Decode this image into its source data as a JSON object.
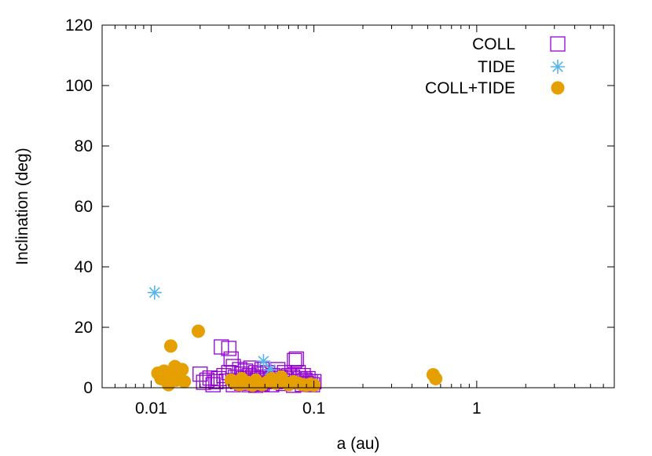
{
  "chart_data": {
    "type": "scatter",
    "title": "",
    "xlabel": "a (au)",
    "ylabel": "Inclination (deg)",
    "xscale": "log",
    "xlim": [
      0.005,
      7.0
    ],
    "ylim": [
      0,
      120
    ],
    "xticks": [
      {
        "value": 0.01,
        "label": "0.01"
      },
      {
        "value": 0.1,
        "label": "0.1"
      },
      {
        "value": 1,
        "label": "1"
      }
    ],
    "yticks": [
      {
        "value": 0,
        "label": "0"
      },
      {
        "value": 20,
        "label": "20"
      },
      {
        "value": 40,
        "label": "40"
      },
      {
        "value": 60,
        "label": "60"
      },
      {
        "value": 80,
        "label": "80"
      },
      {
        "value": 100,
        "label": "100"
      },
      {
        "value": 120,
        "label": "120"
      }
    ],
    "grid": false,
    "legend_position": "top-right",
    "series": [
      {
        "name": "COLL",
        "color": "#9400d3",
        "marker": "open-square",
        "points": [
          [
            0.02,
            4.5
          ],
          [
            0.021,
            1.8
          ],
          [
            0.022,
            2.5
          ],
          [
            0.023,
            3.2
          ],
          [
            0.024,
            1.0
          ],
          [
            0.025,
            2.0
          ],
          [
            0.026,
            3.0
          ],
          [
            0.027,
            13.5
          ],
          [
            0.028,
            4.0
          ],
          [
            0.029,
            2.2
          ],
          [
            0.03,
            13.0
          ],
          [
            0.03,
            5.0
          ],
          [
            0.031,
            9.5
          ],
          [
            0.032,
            7.0
          ],
          [
            0.033,
            3.5
          ],
          [
            0.034,
            2.0
          ],
          [
            0.035,
            6.0
          ],
          [
            0.036,
            4.5
          ],
          [
            0.037,
            3.0
          ],
          [
            0.038,
            5.5
          ],
          [
            0.039,
            2.5
          ],
          [
            0.04,
            4.0
          ],
          [
            0.041,
            6.5
          ],
          [
            0.042,
            3.5
          ],
          [
            0.043,
            2.0
          ],
          [
            0.044,
            5.0
          ],
          [
            0.045,
            3.0
          ],
          [
            0.046,
            4.5
          ],
          [
            0.047,
            1.5
          ],
          [
            0.048,
            6.0
          ],
          [
            0.049,
            3.5
          ],
          [
            0.05,
            2.5
          ],
          [
            0.052,
            5.0
          ],
          [
            0.054,
            3.0
          ],
          [
            0.056,
            4.0
          ],
          [
            0.058,
            2.0
          ],
          [
            0.06,
            6.0
          ],
          [
            0.062,
            3.5
          ],
          [
            0.064,
            2.5
          ],
          [
            0.066,
            5.0
          ],
          [
            0.068,
            3.0
          ],
          [
            0.07,
            4.0
          ],
          [
            0.072,
            2.0
          ],
          [
            0.074,
            3.5
          ],
          [
            0.076,
            9.0
          ],
          [
            0.078,
            9.5
          ],
          [
            0.08,
            5.0
          ],
          [
            0.082,
            3.0
          ],
          [
            0.084,
            2.0
          ],
          [
            0.086,
            4.0
          ],
          [
            0.088,
            2.5
          ],
          [
            0.09,
            1.5
          ],
          [
            0.092,
            3.0
          ],
          [
            0.095,
            2.0
          ],
          [
            0.098,
            1.0
          ],
          [
            0.1,
            2.0
          ],
          [
            0.032,
            1.0
          ],
          [
            0.036,
            1.5
          ],
          [
            0.04,
            1.0
          ],
          [
            0.044,
            0.8
          ],
          [
            0.048,
            1.2
          ],
          [
            0.055,
            1.0
          ],
          [
            0.065,
            1.4
          ],
          [
            0.075,
            0.8
          ],
          [
            0.085,
            1.1
          ]
        ]
      },
      {
        "name": "TIDE",
        "color": "#56b4e9",
        "marker": "asterisk",
        "points": [
          [
            0.0105,
            31.5
          ],
          [
            0.049,
            8.8
          ],
          [
            0.054,
            6.0
          ]
        ]
      },
      {
        "name": "COLL+TIDE",
        "color": "#e69f00",
        "marker": "filled-circle",
        "points": [
          [
            0.011,
            4.8
          ],
          [
            0.0115,
            3.0
          ],
          [
            0.012,
            5.5
          ],
          [
            0.0125,
            2.0
          ],
          [
            0.0128,
            1.0
          ],
          [
            0.0132,
            13.8
          ],
          [
            0.0135,
            4.0
          ],
          [
            0.014,
            7.0
          ],
          [
            0.0142,
            2.5
          ],
          [
            0.0145,
            5.5
          ],
          [
            0.015,
            3.0
          ],
          [
            0.0155,
            6.0
          ],
          [
            0.016,
            2.0
          ],
          [
            0.0195,
            18.7
          ],
          [
            0.031,
            2.5
          ],
          [
            0.033,
            1.5
          ],
          [
            0.035,
            1.0
          ],
          [
            0.038,
            2.0
          ],
          [
            0.04,
            1.2
          ],
          [
            0.042,
            0.8
          ],
          [
            0.045,
            1.5
          ],
          [
            0.048,
            1.0
          ],
          [
            0.052,
            2.0
          ],
          [
            0.055,
            3.0
          ],
          [
            0.058,
            1.5
          ],
          [
            0.06,
            2.5
          ],
          [
            0.063,
            3.5
          ],
          [
            0.065,
            2.0
          ],
          [
            0.068,
            1.5
          ],
          [
            0.07,
            1.0
          ],
          [
            0.075,
            2.0
          ],
          [
            0.08,
            1.5
          ],
          [
            0.085,
            1.0
          ],
          [
            0.09,
            0.8
          ],
          [
            0.095,
            1.2
          ],
          [
            0.1,
            0.8
          ],
          [
            0.54,
            4.3
          ],
          [
            0.56,
            3.0
          ],
          [
            0.036,
            3.0
          ],
          [
            0.044,
            2.5
          ]
        ]
      }
    ]
  }
}
